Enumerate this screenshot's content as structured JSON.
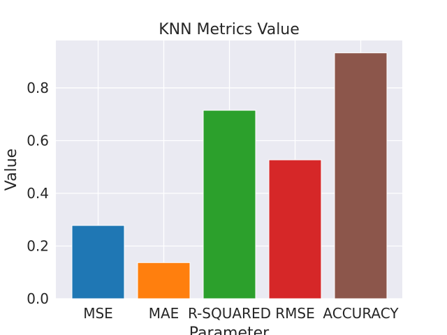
{
  "chart_data": {
    "type": "bar",
    "title": "KNN Metrics Value",
    "xlabel": "Parameter",
    "ylabel": "Value",
    "categories": [
      "MSE",
      "MAE",
      "R-SQUARED",
      "RMSE",
      "ACCURACY"
    ],
    "values": [
      0.278,
      0.137,
      0.715,
      0.527,
      0.933
    ],
    "colors": [
      "#1f77b4",
      "#ff7f0e",
      "#2ca02c",
      "#d62728",
      "#8c564b"
    ],
    "ylim": [
      0,
      0.98
    ],
    "yticks": [
      0.0,
      0.2,
      0.4,
      0.6,
      0.8
    ],
    "ytick_labels": [
      "0.0",
      "0.2",
      "0.4",
      "0.6",
      "0.8"
    ],
    "grid": true,
    "background": "#eaeaf2",
    "grid_color": "#ffffff"
  }
}
